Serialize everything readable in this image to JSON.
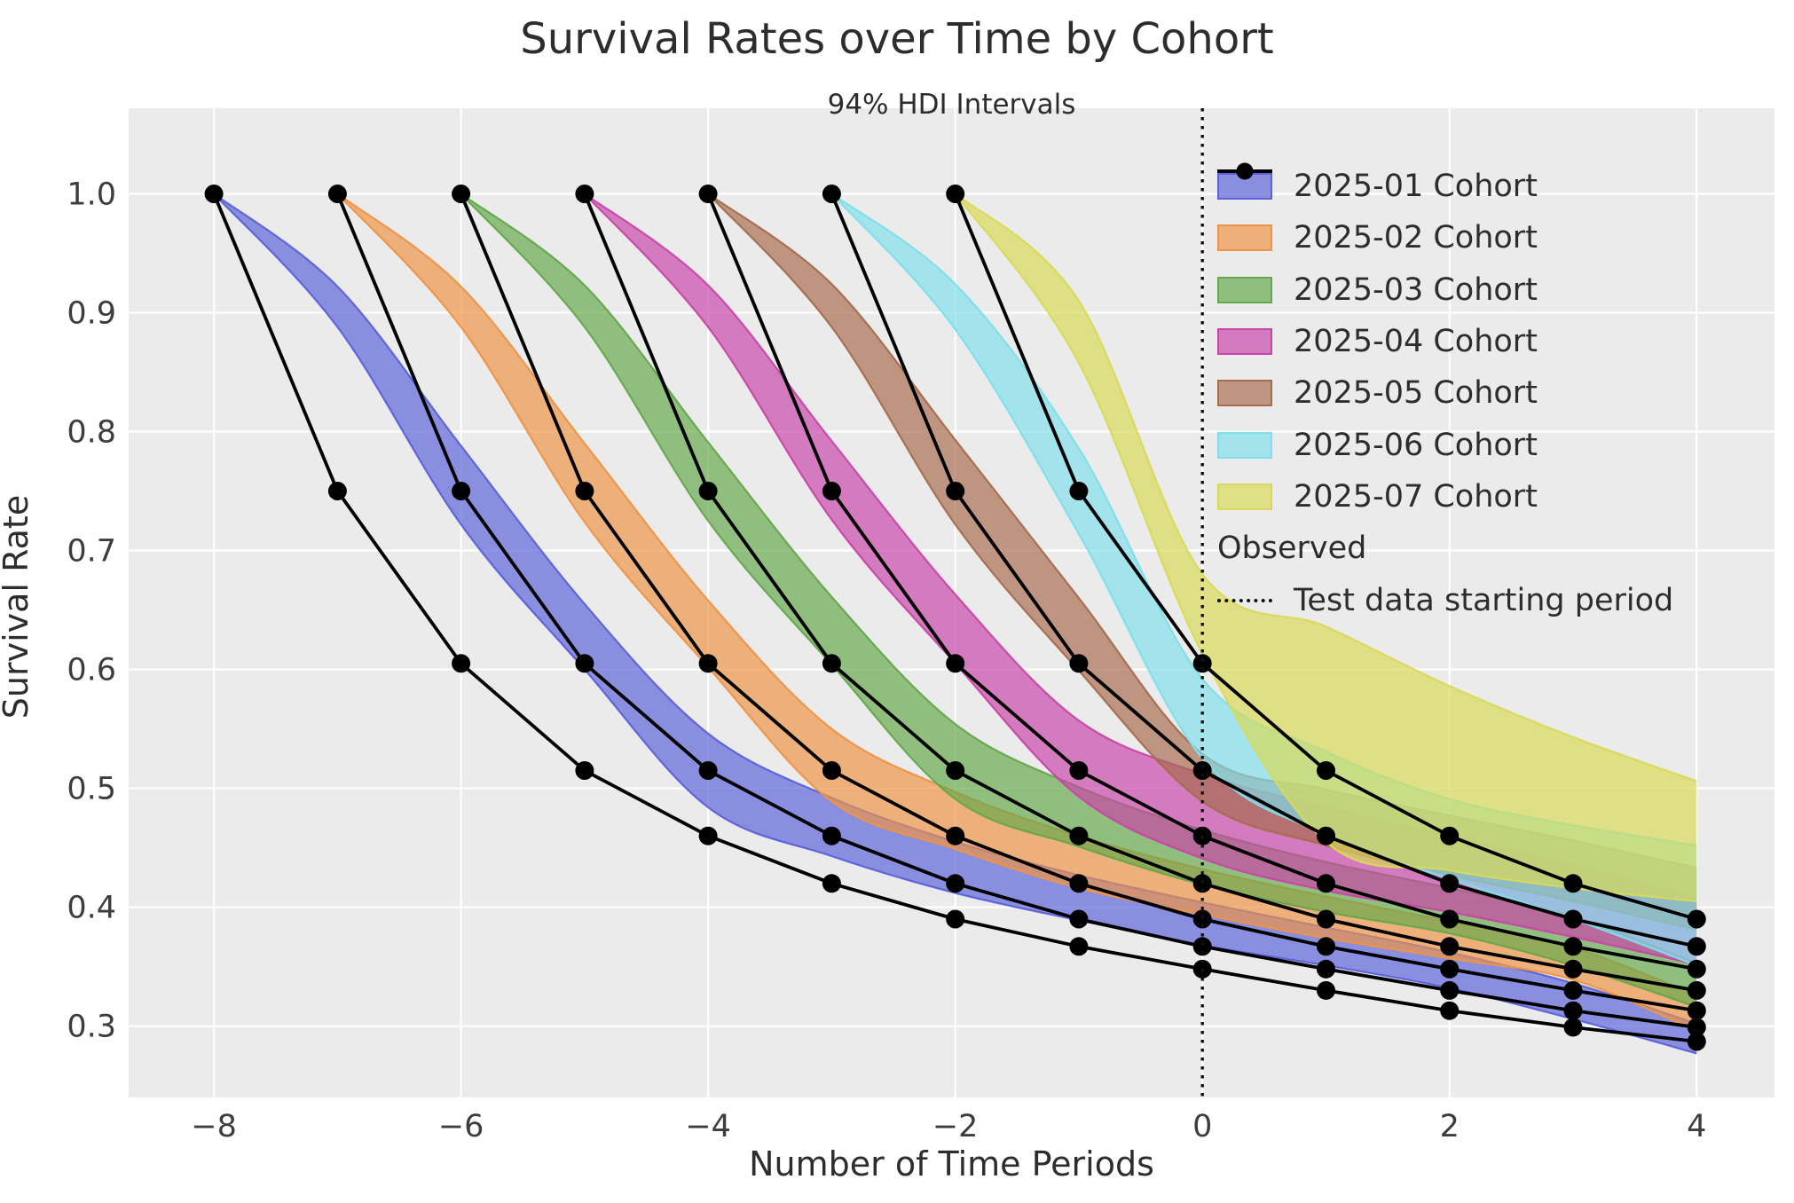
{
  "chart_data": {
    "type": "line",
    "title": "Survival Rates over Time by Cohort",
    "subtitle": "94% HDI Intervals",
    "xlabel": "Number of Time Periods",
    "ylabel": "Survival Rate",
    "x_tick_labels": [
      "−8",
      "−6",
      "−4",
      "−2",
      "0",
      "2",
      "4"
    ],
    "x_tick_values": [
      -8,
      -6,
      -4,
      -2,
      0,
      2,
      4
    ],
    "y_tick_labels": [
      "0.3",
      "0.4",
      "0.5",
      "0.6",
      "0.7",
      "0.8",
      "0.9",
      "1.0"
    ],
    "y_tick_values": [
      0.3,
      0.4,
      0.5,
      0.6,
      0.7,
      0.8,
      0.9,
      1.0
    ],
    "xlim": [
      -8.69,
      4.63
    ],
    "ylim": [
      0.24,
      1.072
    ],
    "grid": true,
    "legend_position": "upper right",
    "observed_label": "Observed",
    "test_line_label": "Test data starting period",
    "test_line_x": 0,
    "survival_by_age": [
      1.0,
      0.75,
      0.605,
      0.515,
      0.46,
      0.42,
      0.39,
      0.367,
      0.348,
      0.33,
      0.313,
      0.299,
      0.287
    ],
    "cohorts": [
      {
        "label": "2025-01 Cohort",
        "color": "#5a61d9",
        "start_period": -8,
        "band": {
          "x": [
            -8,
            -7,
            -6,
            -5,
            -4,
            -3,
            -2,
            -1,
            0,
            1,
            2,
            3,
            4
          ],
          "upper": [
            1.0,
            0.922,
            0.788,
            0.655,
            0.546,
            0.492,
            0.455,
            0.427,
            0.404,
            0.383,
            0.362,
            0.336,
            0.302
          ],
          "lower": [
            1.0,
            0.888,
            0.722,
            0.6,
            0.484,
            0.443,
            0.412,
            0.389,
            0.368,
            0.351,
            0.332,
            0.306,
            0.277
          ]
        }
      },
      {
        "label": "2025-02 Cohort",
        "color": "#ef9444",
        "start_period": -7,
        "band": {
          "x": [
            -7,
            -6,
            -5,
            -4,
            -3,
            -2,
            -1,
            0,
            1,
            2,
            3,
            4
          ],
          "upper": [
            1.0,
            0.922,
            0.79,
            0.658,
            0.55,
            0.497,
            0.46,
            0.432,
            0.409,
            0.388,
            0.366,
            0.326
          ],
          "lower": [
            1.0,
            0.888,
            0.724,
            0.602,
            0.489,
            0.449,
            0.416,
            0.394,
            0.374,
            0.357,
            0.339,
            0.296
          ]
        }
      },
      {
        "label": "2025-03 Cohort",
        "color": "#64a84b",
        "start_period": -6,
        "band": {
          "x": [
            -6,
            -5,
            -4,
            -3,
            -2,
            -1,
            0,
            1,
            2,
            3,
            4
          ],
          "upper": [
            1.0,
            0.923,
            0.791,
            0.661,
            0.554,
            0.501,
            0.465,
            0.438,
            0.416,
            0.392,
            0.353
          ],
          "lower": [
            1.0,
            0.888,
            0.725,
            0.604,
            0.491,
            0.451,
            0.419,
            0.396,
            0.378,
            0.351,
            0.316
          ]
        }
      },
      {
        "label": "2025-04 Cohort",
        "color": "#c944a8",
        "start_period": -5,
        "band": {
          "x": [
            -5,
            -4,
            -3,
            -2,
            -1,
            0,
            1,
            2,
            3,
            4
          ],
          "upper": [
            1.0,
            0.923,
            0.792,
            0.663,
            0.557,
            0.512,
            0.484,
            0.46,
            0.436,
            0.407
          ],
          "lower": [
            1.0,
            0.888,
            0.726,
            0.605,
            0.493,
            0.441,
            0.414,
            0.396,
            0.375,
            0.352
          ]
        }
      },
      {
        "label": "2025-05 Cohort",
        "color": "#a76c4d",
        "start_period": -4,
        "band": {
          "x": [
            -4,
            -3,
            -2,
            -1,
            0,
            1,
            2,
            3,
            4
          ],
          "upper": [
            1.0,
            0.924,
            0.793,
            0.66,
            0.529,
            0.499,
            0.477,
            0.456,
            0.433
          ],
          "lower": [
            1.0,
            0.888,
            0.722,
            0.599,
            0.489,
            0.452,
            0.427,
            0.405,
            0.381
          ]
        }
      },
      {
        "label": "2025-06 Cohort",
        "color": "#7fdeec",
        "start_period": -3,
        "band": {
          "x": [
            -3,
            -2,
            -1,
            0,
            1,
            2,
            3,
            4
          ],
          "upper": [
            1.0,
            0.924,
            0.786,
            0.592,
            0.531,
            0.491,
            0.469,
            0.452
          ],
          "lower": [
            1.0,
            0.886,
            0.714,
            0.525,
            0.461,
            0.424,
            0.39,
            0.351
          ]
        }
      },
      {
        "label": "2025-07 Cohort",
        "color": "#d8da56",
        "start_period": -2,
        "band": {
          "x": [
            -2,
            -1,
            0,
            1,
            2,
            3,
            4
          ],
          "upper": [
            1.0,
            0.91,
            0.68,
            0.636,
            0.586,
            0.543,
            0.506
          ],
          "lower": [
            1.0,
            0.858,
            0.613,
            0.455,
            0.431,
            0.416,
            0.405
          ]
        }
      }
    ]
  },
  "style": {
    "plot_bg": "#ebebeb",
    "grid_color": "#ffffff",
    "observed_color": "#000000",
    "test_line_color": "#111111",
    "text_color": "#2d2d2d",
    "tick_color": "#3d3d3d",
    "band_fill_opacity": 0.68
  }
}
